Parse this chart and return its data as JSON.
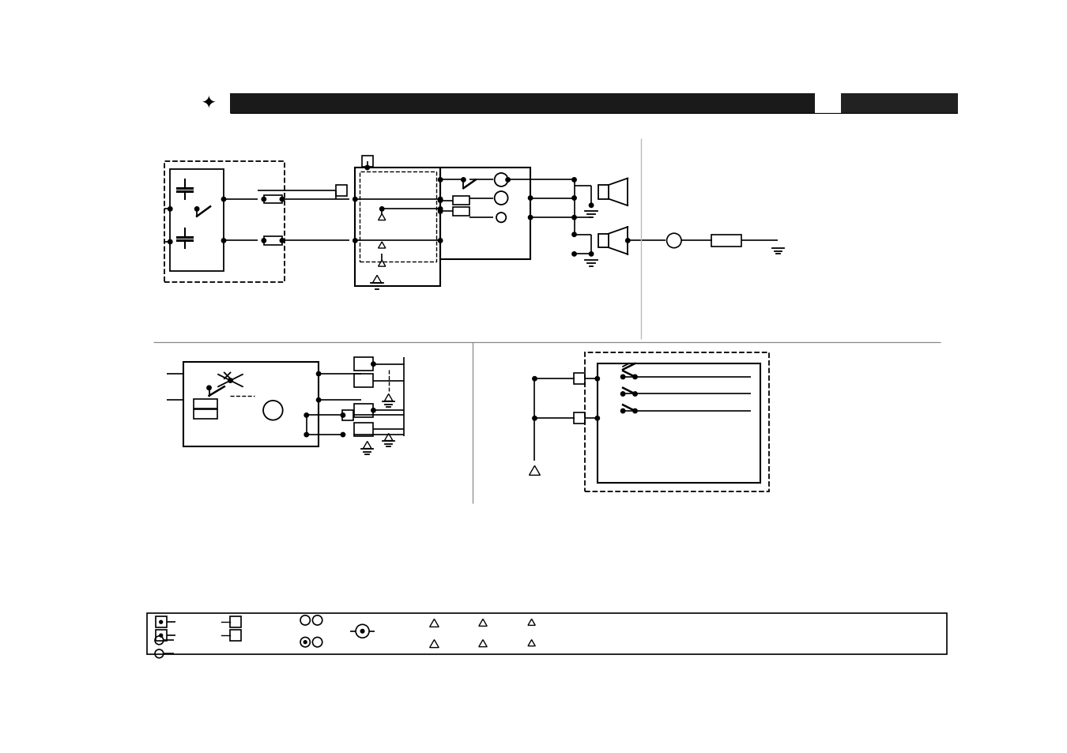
{
  "bg_color": "#ffffff",
  "header_bar_color": "#1a1a1a",
  "line_color": "#000000",
  "gray_line": "#999999"
}
